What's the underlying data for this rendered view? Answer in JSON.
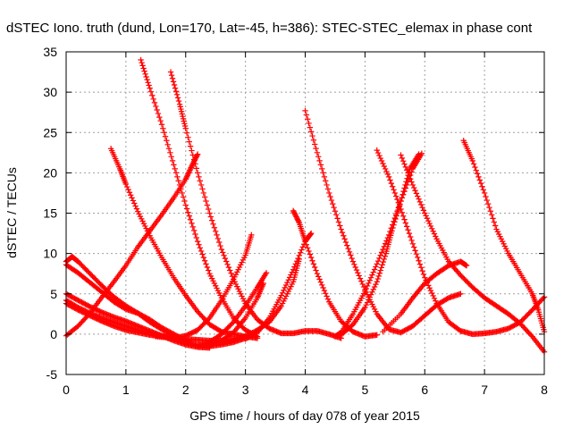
{
  "chart_data": {
    "type": "scatter",
    "title": "dSTEC Iono. truth (dund, Lon=170, Lat=-45, h=386): STEC-STEC_elemax in phase cont",
    "xlabel": "GPS time / hours of day 078 of year 2015",
    "ylabel": "dSTEC  / TECUs",
    "xlim": [
      0,
      8
    ],
    "ylim": [
      -5,
      35
    ],
    "xticks": [
      "0",
      "1",
      "2",
      "3",
      "4",
      "5",
      "6",
      "7",
      "8"
    ],
    "yticks": [
      "-5",
      "0",
      "5",
      "10",
      "15",
      "20",
      "25",
      "30",
      "35"
    ],
    "grid": true,
    "marker": "plus",
    "color": "#ff0000",
    "series": [
      {
        "points": [
          [
            0.0,
            9.0
          ],
          [
            0.1,
            9.6
          ],
          [
            0.2,
            9.0
          ],
          [
            0.4,
            7.5
          ],
          [
            0.6,
            6.0
          ],
          [
            0.8,
            4.6
          ],
          [
            1.0,
            3.5
          ],
          [
            1.2,
            2.6
          ],
          [
            1.4,
            1.5
          ],
          [
            1.6,
            0.6
          ],
          [
            1.8,
            -0.2
          ],
          [
            2.0,
            -0.9
          ],
          [
            2.2,
            -1.4
          ],
          [
            2.4,
            -1.5
          ],
          [
            2.6,
            -1.3
          ],
          [
            2.8,
            -1.0
          ],
          [
            3.0,
            -0.5
          ]
        ]
      },
      {
        "points": [
          [
            0.0,
            8.6
          ],
          [
            0.2,
            7.6
          ],
          [
            0.4,
            6.4
          ],
          [
            0.6,
            5.2
          ],
          [
            0.8,
            4.0
          ],
          [
            1.0,
            3.1
          ],
          [
            1.2,
            2.6
          ],
          [
            1.4,
            1.8
          ],
          [
            1.6,
            0.8
          ],
          [
            1.8,
            0.0
          ],
          [
            2.0,
            -0.8
          ],
          [
            2.1,
            -1.3
          ]
        ]
      },
      {
        "points": [
          [
            0.0,
            5.0
          ],
          [
            0.2,
            4.2
          ],
          [
            0.4,
            3.4
          ],
          [
            0.6,
            2.7
          ],
          [
            0.8,
            2.1
          ],
          [
            1.0,
            1.6
          ],
          [
            1.2,
            1.0
          ],
          [
            1.4,
            0.4
          ],
          [
            1.6,
            -0.2
          ],
          [
            1.8,
            -0.8
          ],
          [
            2.0,
            -1.3
          ],
          [
            2.2,
            -1.6
          ],
          [
            2.4,
            -1.7
          ]
        ]
      },
      {
        "points": [
          [
            0.0,
            4.2
          ],
          [
            0.2,
            3.3
          ],
          [
            0.4,
            2.6
          ],
          [
            0.6,
            2.0
          ],
          [
            0.8,
            1.5
          ],
          [
            1.0,
            1.0
          ],
          [
            1.2,
            0.5
          ],
          [
            1.4,
            0.1
          ],
          [
            1.6,
            -0.2
          ],
          [
            1.8,
            -0.5
          ],
          [
            2.0,
            -0.8
          ]
        ]
      },
      {
        "points": [
          [
            0.0,
            3.8
          ],
          [
            0.2,
            3.0
          ],
          [
            0.4,
            2.3
          ],
          [
            0.6,
            1.6
          ],
          [
            0.8,
            1.0
          ],
          [
            1.0,
            0.5
          ],
          [
            1.2,
            0.2
          ],
          [
            1.4,
            -0.1
          ],
          [
            1.6,
            -0.3
          ],
          [
            1.8,
            -0.5
          ],
          [
            2.0,
            -0.6
          ],
          [
            2.2,
            -0.7
          ],
          [
            2.4,
            -0.8
          ],
          [
            2.6,
            -0.8
          ],
          [
            2.8,
            -0.6
          ],
          [
            3.0,
            -0.3
          ]
        ]
      },
      {
        "points": [
          [
            0.0,
            -0.2
          ],
          [
            0.2,
            1.0
          ],
          [
            0.4,
            2.6
          ],
          [
            0.6,
            4.6
          ],
          [
            0.8,
            6.5
          ],
          [
            1.0,
            8.5
          ],
          [
            1.2,
            10.8
          ],
          [
            1.4,
            12.8
          ],
          [
            1.6,
            14.8
          ],
          [
            1.8,
            16.9
          ],
          [
            2.0,
            19.2
          ],
          [
            2.1,
            20.8
          ],
          [
            2.2,
            22.3
          ]
        ]
      },
      {
        "points": [
          [
            0.75,
            23.0
          ],
          [
            0.9,
            20.5
          ],
          [
            1.0,
            18.6
          ],
          [
            1.2,
            15.2
          ],
          [
            1.4,
            12.2
          ],
          [
            1.6,
            9.5
          ],
          [
            1.8,
            7.0
          ],
          [
            2.0,
            4.8
          ],
          [
            2.2,
            2.8
          ],
          [
            2.4,
            1.2
          ],
          [
            2.6,
            0.3
          ],
          [
            2.8,
            0.0
          ],
          [
            3.0,
            -0.3
          ],
          [
            3.2,
            -0.5
          ]
        ]
      },
      {
        "points": [
          [
            1.25,
            34.0
          ],
          [
            1.4,
            30.5
          ],
          [
            1.6,
            26.0
          ],
          [
            1.8,
            21.0
          ],
          [
            2.0,
            16.0
          ],
          [
            2.2,
            11.5
          ],
          [
            2.4,
            7.5
          ],
          [
            2.6,
            4.5
          ],
          [
            2.8,
            2.0
          ],
          [
            3.0,
            0.5
          ],
          [
            3.2,
            -0.3
          ]
        ]
      },
      {
        "points": [
          [
            1.75,
            32.5
          ],
          [
            1.9,
            28.5
          ],
          [
            2.0,
            25.5
          ],
          [
            2.2,
            20.0
          ],
          [
            2.4,
            15.0
          ],
          [
            2.6,
            10.5
          ],
          [
            2.8,
            6.8
          ],
          [
            3.0,
            3.8
          ],
          [
            3.2,
            1.8
          ],
          [
            3.4,
            0.7
          ],
          [
            3.6,
            0.1
          ],
          [
            3.8,
            0.1
          ],
          [
            4.0,
            0.4
          ],
          [
            4.2,
            0.4
          ],
          [
            4.4,
            0.0
          ],
          [
            4.6,
            -0.5
          ]
        ]
      },
      {
        "points": [
          [
            1.5,
            -0.3
          ],
          [
            1.8,
            -0.5
          ],
          [
            2.0,
            -0.2
          ],
          [
            2.2,
            0.5
          ],
          [
            2.4,
            2.0
          ],
          [
            2.6,
            4.2
          ],
          [
            2.8,
            6.8
          ],
          [
            3.0,
            9.8
          ],
          [
            3.1,
            12.3
          ]
        ]
      },
      {
        "points": [
          [
            2.2,
            -1.5
          ],
          [
            2.4,
            -1.0
          ],
          [
            2.6,
            0.0
          ],
          [
            2.8,
            1.5
          ],
          [
            3.0,
            3.5
          ],
          [
            3.2,
            5.8
          ],
          [
            3.35,
            7.6
          ]
        ]
      },
      {
        "points": [
          [
            2.4,
            -1.3
          ],
          [
            2.6,
            -0.8
          ],
          [
            2.8,
            0.2
          ],
          [
            3.0,
            2.0
          ],
          [
            3.2,
            4.5
          ],
          [
            3.3,
            6.3
          ]
        ]
      },
      {
        "points": [
          [
            2.6,
            -1.1
          ],
          [
            2.8,
            -0.8
          ],
          [
            3.0,
            -0.3
          ],
          [
            3.2,
            0.5
          ],
          [
            3.4,
            1.5
          ],
          [
            3.6,
            3.5
          ],
          [
            3.8,
            6.5
          ],
          [
            3.9,
            9.3
          ]
        ]
      },
      {
        "points": [
          [
            3.0,
            -0.6
          ],
          [
            3.2,
            0.2
          ],
          [
            3.4,
            2.0
          ],
          [
            3.6,
            4.8
          ],
          [
            3.8,
            8.0
          ],
          [
            4.0,
            11.5
          ],
          [
            4.1,
            12.5
          ]
        ]
      },
      {
        "points": [
          [
            3.8,
            15.3
          ],
          [
            3.9,
            13.8
          ],
          [
            4.0,
            11.5
          ],
          [
            4.2,
            7.5
          ],
          [
            4.4,
            4.0
          ],
          [
            4.6,
            1.6
          ],
          [
            4.8,
            0.3
          ],
          [
            5.0,
            -0.3
          ],
          [
            5.2,
            -0.1
          ]
        ]
      },
      {
        "points": [
          [
            4.0,
            27.7
          ],
          [
            4.2,
            22.5
          ],
          [
            4.4,
            17.5
          ],
          [
            4.6,
            13.0
          ],
          [
            4.8,
            9.0
          ],
          [
            5.0,
            5.5
          ],
          [
            5.2,
            2.5
          ],
          [
            5.4,
            0.6
          ],
          [
            5.6,
            0.2
          ],
          [
            5.8,
            1.0
          ],
          [
            6.0,
            2.3
          ],
          [
            6.2,
            3.6
          ],
          [
            6.4,
            4.5
          ],
          [
            6.6,
            5.0
          ]
        ]
      },
      {
        "points": [
          [
            4.5,
            -0.3
          ],
          [
            4.6,
            0.2
          ],
          [
            4.8,
            2.5
          ],
          [
            5.0,
            5.3
          ],
          [
            5.2,
            8.7
          ],
          [
            5.4,
            12.3
          ],
          [
            5.6,
            16.5
          ],
          [
            5.8,
            20.5
          ],
          [
            5.95,
            22.4
          ]
        ]
      },
      {
        "points": [
          [
            4.6,
            -0.1
          ],
          [
            4.8,
            1.2
          ],
          [
            5.0,
            3.3
          ],
          [
            5.2,
            6.5
          ],
          [
            5.35,
            10.0
          ],
          [
            5.45,
            12.8
          ],
          [
            5.6,
            16.5
          ],
          [
            5.75,
            20.5
          ],
          [
            5.9,
            22.3
          ]
        ]
      },
      {
        "points": [
          [
            5.2,
            22.8
          ],
          [
            5.4,
            19.5
          ],
          [
            5.6,
            15.5
          ],
          [
            5.8,
            11.2
          ],
          [
            6.0,
            7.0
          ],
          [
            6.2,
            3.8
          ],
          [
            6.4,
            1.5
          ],
          [
            6.6,
            0.4
          ],
          [
            6.8,
            0.0
          ],
          [
            7.0,
            0.1
          ],
          [
            7.2,
            0.3
          ],
          [
            7.4,
            0.7
          ],
          [
            7.6,
            1.5
          ],
          [
            7.8,
            3.0
          ],
          [
            8.0,
            4.6
          ]
        ]
      },
      {
        "points": [
          [
            5.6,
            22.2
          ],
          [
            5.8,
            18.5
          ],
          [
            6.0,
            15.0
          ],
          [
            6.2,
            11.8
          ],
          [
            6.4,
            9.0
          ],
          [
            6.6,
            7.3
          ],
          [
            6.8,
            5.8
          ],
          [
            7.0,
            4.5
          ],
          [
            7.2,
            3.5
          ],
          [
            7.4,
            2.5
          ],
          [
            7.6,
            1.3
          ],
          [
            7.8,
            -0.3
          ],
          [
            8.0,
            -2.2
          ]
        ]
      },
      {
        "points": [
          [
            5.3,
            0.3
          ],
          [
            5.6,
            2.5
          ],
          [
            5.8,
            4.5
          ],
          [
            6.0,
            6.3
          ],
          [
            6.2,
            7.5
          ],
          [
            6.4,
            8.5
          ],
          [
            6.6,
            9.0
          ],
          [
            6.7,
            8.5
          ]
        ]
      },
      {
        "points": [
          [
            6.65,
            24.0
          ],
          [
            6.8,
            21.5
          ],
          [
            7.0,
            17.5
          ],
          [
            7.2,
            13.0
          ],
          [
            7.4,
            10.0
          ],
          [
            7.6,
            7.5
          ],
          [
            7.8,
            5.0
          ],
          [
            7.9,
            3.0
          ],
          [
            8.0,
            0.3
          ]
        ]
      }
    ]
  }
}
